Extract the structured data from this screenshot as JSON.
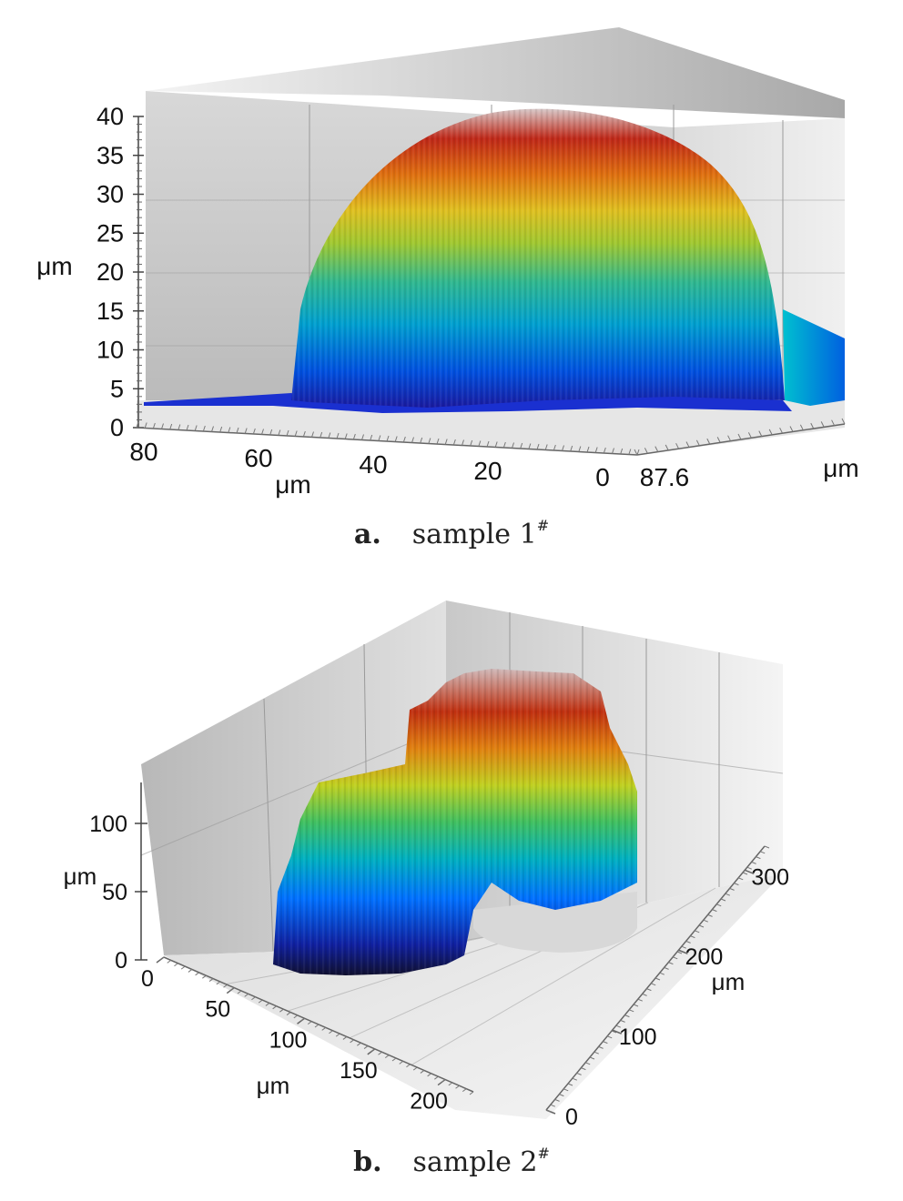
{
  "chart_data": [
    {
      "type": "surface3d",
      "caption_letter": "a.",
      "caption_text": "sample 1",
      "caption_sup": "#",
      "z_label": "μm",
      "z_ticks": [
        "0",
        "5",
        "10",
        "15",
        "20",
        "25",
        "30",
        "35",
        "40"
      ],
      "zlim": [
        0,
        40
      ],
      "x_label": "μm",
      "x_ticks": [
        "80",
        "60",
        "40",
        "20",
        "0"
      ],
      "y_label": "μm",
      "y_ticks": [
        "87.6"
      ],
      "peak_height": 40,
      "colormap": [
        "#1a1aa0",
        "#0070ff",
        "#00c0e0",
        "#40c080",
        "#c0d020",
        "#f0c020",
        "#e06010",
        "#c02010",
        "#d8c8c8"
      ]
    },
    {
      "type": "surface3d",
      "caption_letter": "b.",
      "caption_text": "sample 2",
      "caption_sup": "#",
      "z_label": "μm",
      "z_ticks": [
        "0",
        "50",
        "100"
      ],
      "zlim": [
        0,
        130
      ],
      "x_label": "μm",
      "x_ticks": [
        "0",
        "50",
        "100",
        "150",
        "200"
      ],
      "y_label": "μm",
      "y_ticks": [
        "0",
        "100",
        "200",
        "300"
      ],
      "colormap": [
        "#101030",
        "#1020a0",
        "#0070ff",
        "#00b0c0",
        "#40c060",
        "#c0d020",
        "#e08010",
        "#c03010",
        "#d0b8b8"
      ]
    }
  ]
}
